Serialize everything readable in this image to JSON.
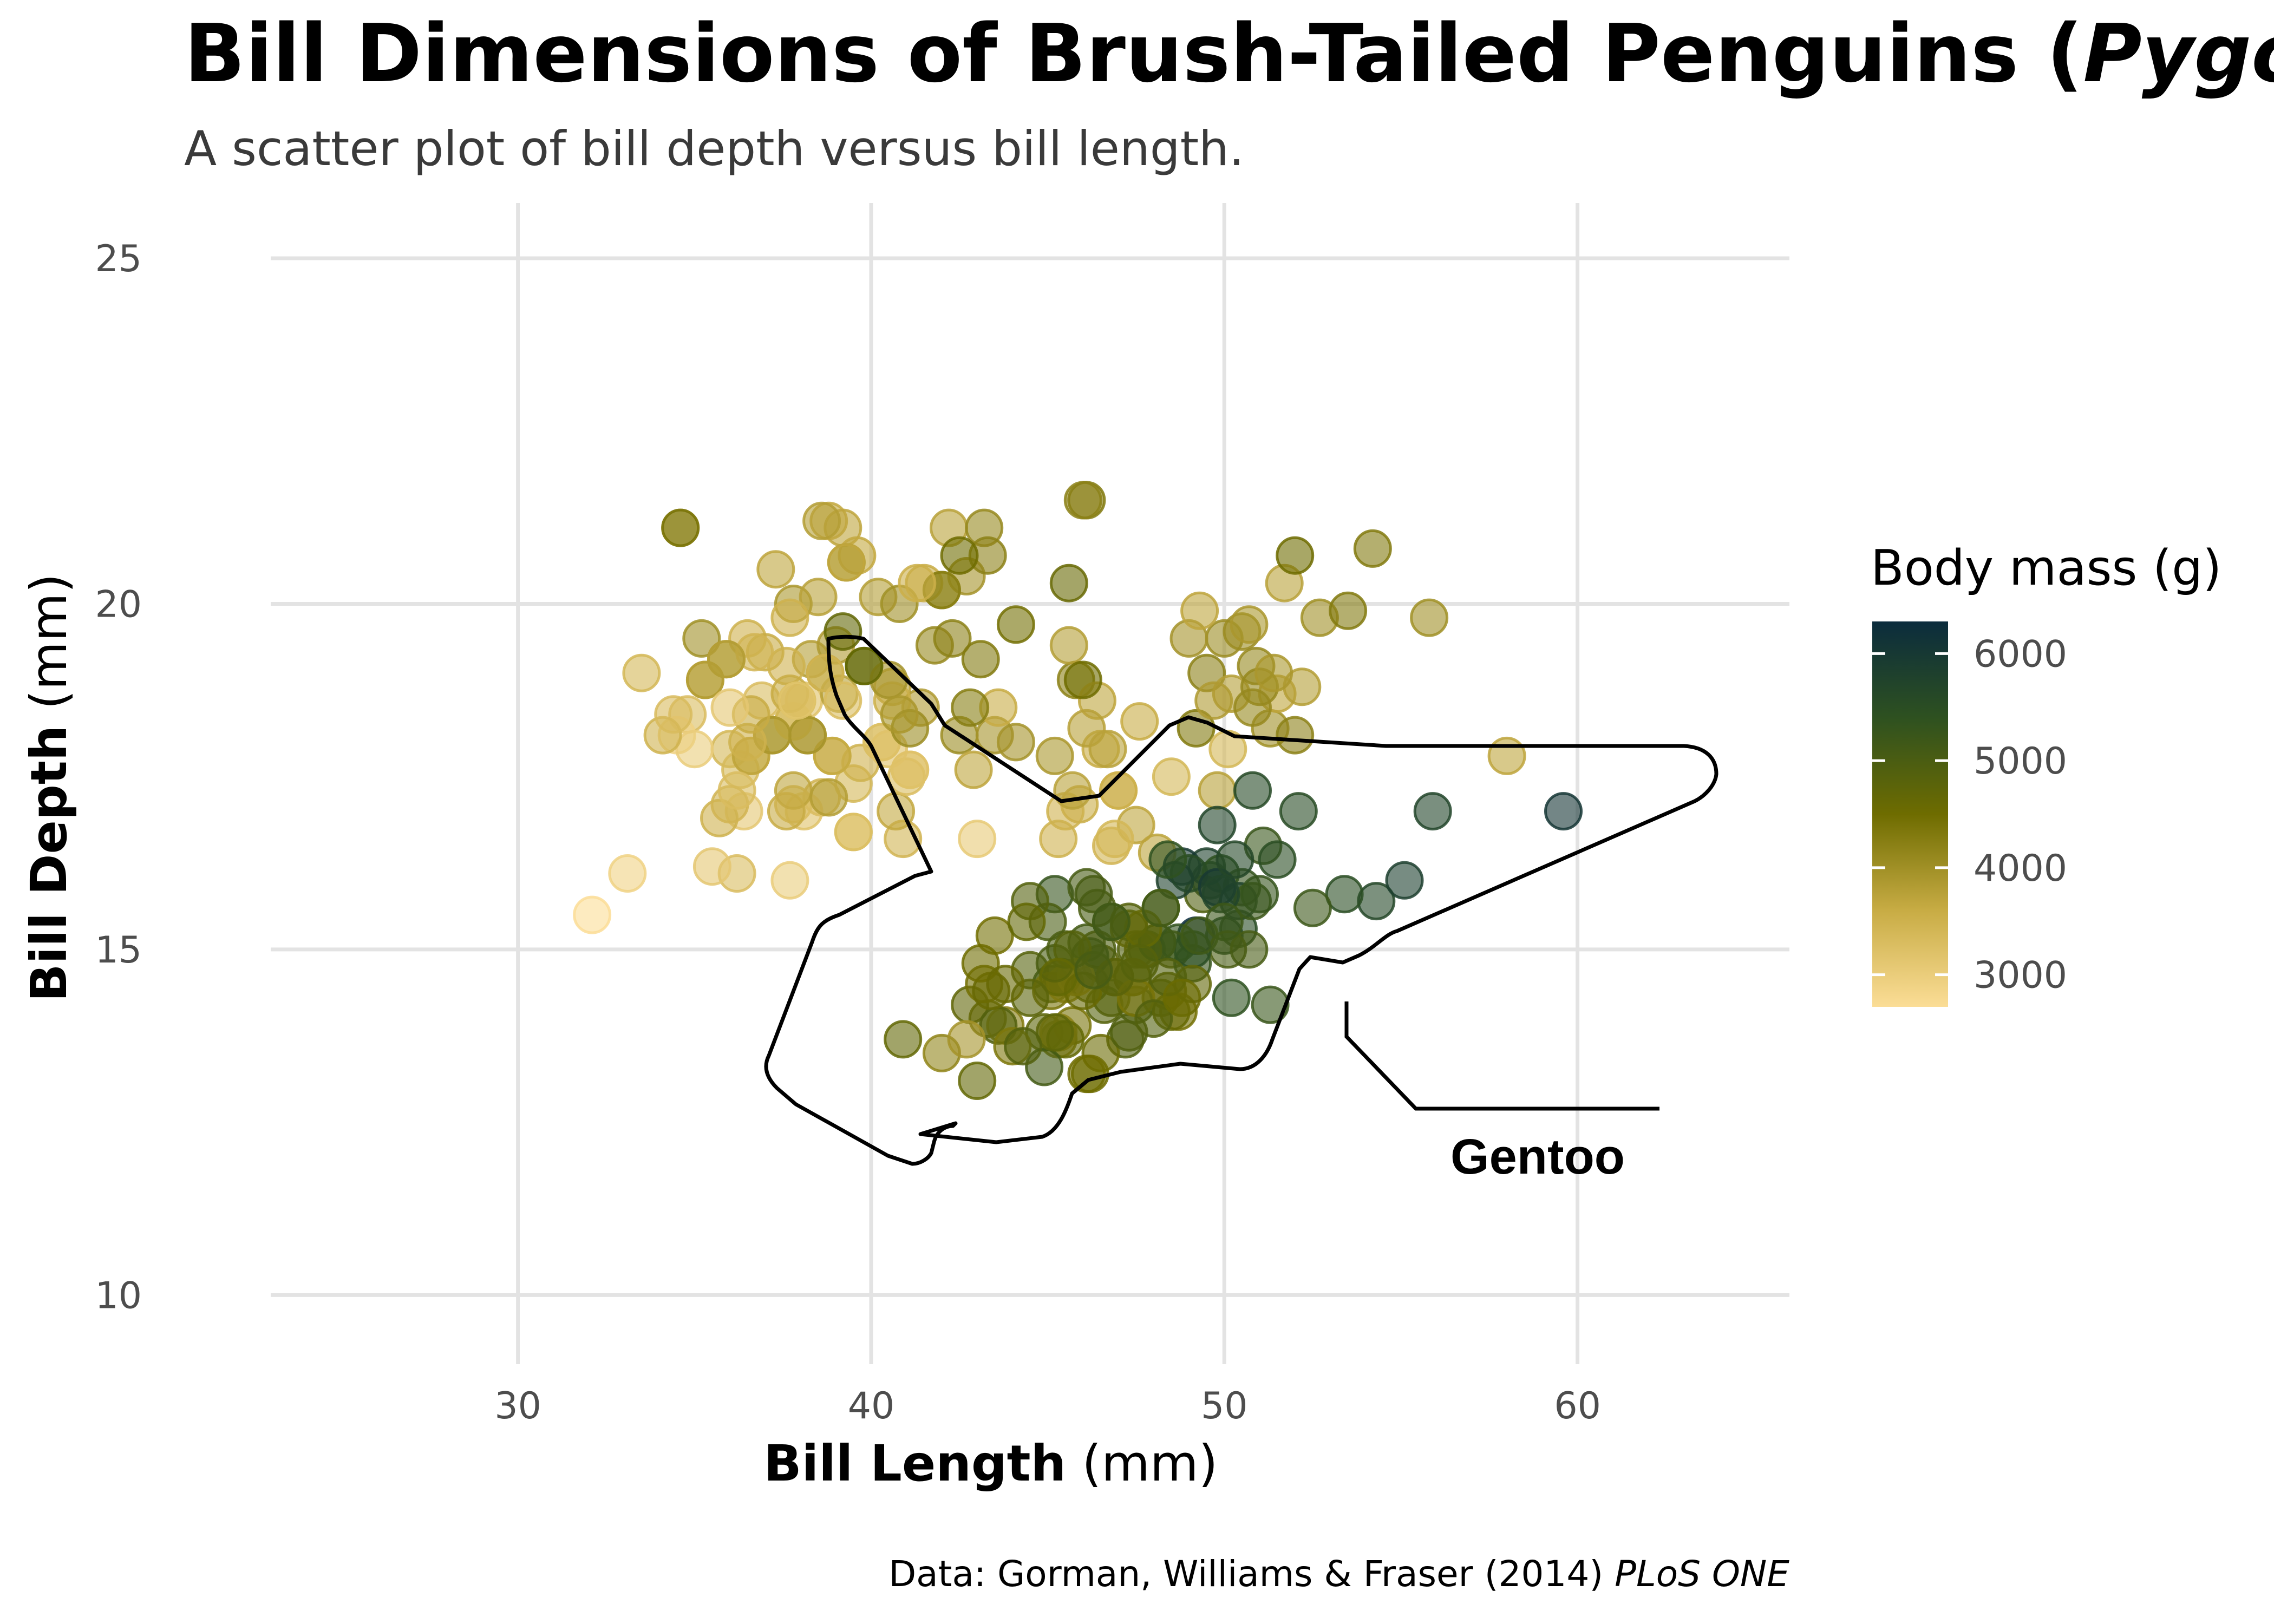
{
  "chart_data": {
    "type": "scatter",
    "title_main": "Bill Dimensions of Brush-Tailed Penguins (",
    "title_italic": "Pygoscelis",
    "subtitle": "A scatter plot of bill depth versus bill length.",
    "xlabel_bold": "Bill Length",
    "xlabel_unit": " (mm)",
    "ylabel_bold": "Bill Depth",
    "ylabel_unit": " (mm)",
    "xlim": [
      23,
      66
    ],
    "ylim": [
      9,
      25.8
    ],
    "x_ticks": [
      30,
      40,
      50,
      60
    ],
    "y_ticks": [
      10,
      15,
      20,
      25
    ],
    "grid": true,
    "legend": {
      "title": "Body mass (g)",
      "placement": "right",
      "min": 2700,
      "max": 6300,
      "ticks": [
        3000,
        4000,
        5000,
        6000
      ],
      "colors": [
        "#fbdd96",
        "#c8ac44",
        "#6e6c00",
        "#2e5120",
        "#0b2c3d"
      ]
    },
    "annotation": {
      "label": "Gentoo"
    },
    "caption_main": "Data: Gorman, Williams & Fraser (2014) ",
    "caption_italic": "PLoS ONE",
    "points": [
      [
        34.6,
        21.1,
        3800
      ],
      [
        38.8,
        21.2,
        3650
      ],
      [
        39.2,
        21.1,
        3700
      ],
      [
        42.2,
        21.1,
        3750
      ],
      [
        43.2,
        21.1,
        4100
      ],
      [
        46.1,
        21.5,
        4300
      ],
      [
        35.2,
        19.5,
        4000
      ],
      [
        36.5,
        19.5,
        3500
      ],
      [
        37.0,
        19.3,
        3600
      ],
      [
        37.8,
        20.0,
        3900
      ],
      [
        38.3,
        19.2,
        3800
      ],
      [
        39.0,
        19.4,
        3850
      ],
      [
        38.5,
        20.1,
        3750
      ],
      [
        39.6,
        20.7,
        3650
      ],
      [
        40.2,
        20.1,
        3800
      ],
      [
        40.8,
        20.0,
        4000
      ],
      [
        41.5,
        20.3,
        3600
      ],
      [
        42.7,
        20.4,
        3950
      ],
      [
        43.3,
        20.7,
        4200
      ],
      [
        37.3,
        20.5,
        3700
      ],
      [
        33.5,
        19.0,
        3400
      ],
      [
        34.8,
        18.4,
        3300
      ],
      [
        35.3,
        18.9,
        3700
      ],
      [
        36.0,
        17.9,
        3400
      ],
      [
        36.4,
        17.0,
        3100
      ],
      [
        36.6,
        17.8,
        3400
      ],
      [
        36.9,
        18.6,
        3300
      ],
      [
        37.6,
        19.1,
        3500
      ],
      [
        38.1,
        18.6,
        3200
      ],
      [
        38.6,
        17.2,
        3450
      ],
      [
        38.9,
        17.8,
        3600
      ],
      [
        39.5,
        17.4,
        3400
      ],
      [
        39.8,
        19.1,
        4600
      ],
      [
        40.3,
        18.0,
        3250
      ],
      [
        40.6,
        18.8,
        3700
      ],
      [
        41.1,
        17.6,
        3200
      ],
      [
        41.4,
        18.5,
        3850
      ],
      [
        41.8,
        19.4,
        4100
      ],
      [
        42.0,
        20.2,
        4000
      ],
      [
        42.3,
        19.5,
        4200
      ],
      [
        42.5,
        18.1,
        4050
      ],
      [
        43.1,
        19.2,
        4300
      ],
      [
        44.1,
        19.7,
        4450
      ],
      [
        45.8,
        18.9,
        4200
      ],
      [
        45.2,
        17.8,
        3900
      ],
      [
        47.0,
        17.3,
        3650
      ],
      [
        47.5,
        16.8,
        3700
      ],
      [
        48.1,
        16.4,
        3725
      ],
      [
        46.5,
        17.9,
        3600
      ],
      [
        45.6,
        19.4,
        3800
      ],
      [
        46.4,
        18.6,
        3700
      ],
      [
        46.8,
        16.5,
        3450
      ],
      [
        47.6,
        18.3,
        3600
      ],
      [
        49.2,
        18.2,
        4300
      ],
      [
        49.5,
        19.0,
        4200
      ],
      [
        50.0,
        19.5,
        4050
      ],
      [
        50.2,
        18.7,
        3800
      ],
      [
        50.5,
        19.6,
        4050
      ],
      [
        51.3,
        18.2,
        4000
      ],
      [
        51.5,
        18.7,
        3700
      ],
      [
        52.0,
        18.1,
        4200
      ],
      [
        52.2,
        18.8,
        3800
      ],
      [
        52.7,
        19.8,
        4000
      ],
      [
        53.5,
        19.9,
        4300
      ],
      [
        55.8,
        19.8,
        4000
      ],
      [
        58.0,
        17.8,
        3700
      ],
      [
        51.0,
        18.8,
        4100
      ],
      [
        50.7,
        19.7,
        3900
      ],
      [
        49.0,
        19.5,
        3950
      ],
      [
        49.8,
        17.3,
        3775
      ],
      [
        50.9,
        19.1,
        4100
      ],
      [
        51.7,
        20.3,
        3750
      ],
      [
        52.0,
        20.7,
        4500
      ],
      [
        54.2,
        20.8,
        4300
      ],
      [
        50.8,
        18.5,
        4100
      ],
      [
        49.3,
        19.9,
        3700
      ],
      [
        48.5,
        17.5,
        3400
      ],
      [
        46.0,
        18.9,
        4500
      ],
      [
        45.9,
        17.1,
        3575
      ],
      [
        45.5,
        17.0,
        3500
      ],
      [
        45.3,
        16.6,
        3500
      ],
      [
        46.1,
        18.2,
        3775
      ],
      [
        46.9,
        16.6,
        3400
      ],
      [
        47.0,
        17.3,
        3500
      ],
      [
        49.7,
        18.6,
        3850
      ],
      [
        50.1,
        17.9,
        3400
      ],
      [
        51.4,
        19.0,
        3900
      ],
      [
        45.7,
        17.3,
        3750
      ],
      [
        46.7,
        17.9,
        3750
      ],
      [
        43.5,
        18.1,
        3950
      ],
      [
        40.9,
        16.6,
        3450
      ],
      [
        39.7,
        17.7,
        3500
      ],
      [
        38.2,
        18.1,
        3700
      ],
      [
        35.9,
        19.2,
        3800
      ],
      [
        34.5,
        18.1,
        2900
      ],
      [
        35.7,
        16.9,
        3500
      ],
      [
        36.2,
        16.1,
        3300
      ],
      [
        37.7,
        16.0,
        3000
      ],
      [
        33.1,
        16.1,
        2900
      ],
      [
        32.1,
        15.5,
        2700
      ],
      [
        35.0,
        17.9,
        3000
      ],
      [
        35.5,
        16.2,
        3100
      ],
      [
        36.3,
        17.6,
        3350
      ],
      [
        37.9,
        18.6,
        3600
      ],
      [
        38.7,
        19.0,
        3800
      ],
      [
        39.3,
        20.6,
        4100
      ],
      [
        40.7,
        17.0,
        3650
      ],
      [
        41.0,
        17.5,
        3300
      ],
      [
        42.9,
        17.6,
        3700
      ],
      [
        43.0,
        16.6,
        3050
      ],
      [
        43.6,
        18.5,
        3600
      ],
      [
        44.1,
        18.0,
        3950
      ],
      [
        37.2,
        18.1,
        3900
      ],
      [
        37.8,
        18.3,
        3400
      ],
      [
        38.1,
        17.0,
        3200
      ],
      [
        39.1,
        18.7,
        3750
      ],
      [
        39.5,
        16.7,
        3250
      ],
      [
        40.3,
        18.0,
        3250
      ],
      [
        36.7,
        19.3,
        3450
      ],
      [
        39.3,
        20.6,
        3650
      ],
      [
        38.9,
        17.8,
        3625
      ],
      [
        39.2,
        19.6,
        4675
      ],
      [
        34.1,
        18.1,
        3475
      ],
      [
        42.0,
        20.2,
        4250
      ],
      [
        37.8,
        17.1,
        3300
      ],
      [
        37.8,
        17.3,
        3700
      ],
      [
        41.1,
        17.6,
        3200
      ],
      [
        38.6,
        21.2,
        3800
      ],
      [
        34.6,
        21.1,
        4400
      ],
      [
        36.6,
        17.8,
        3700
      ],
      [
        38.7,
        19.0,
        3450
      ],
      [
        42.5,
        20.7,
        4500
      ],
      [
        34.4,
        18.4,
        3325
      ],
      [
        46.0,
        21.5,
        4200
      ],
      [
        37.8,
        18.3,
        3400
      ],
      [
        37.7,
        18.7,
        3600
      ],
      [
        35.9,
        19.2,
        3800
      ],
      [
        38.2,
        18.1,
        3950
      ],
      [
        38.8,
        17.2,
        3800
      ],
      [
        35.3,
        18.9,
        3800
      ],
      [
        40.6,
        18.6,
        3550
      ],
      [
        40.5,
        17.9,
        3200
      ],
      [
        37.9,
        18.6,
        3150
      ],
      [
        40.5,
        18.9,
        3950
      ],
      [
        39.5,
        16.7,
        3250
      ],
      [
        37.2,
        18.1,
        3900
      ],
      [
        39.2,
        18.6,
        3300
      ],
      [
        39.8,
        19.1,
        4650
      ],
      [
        36.0,
        17.1,
        3450
      ],
      [
        41.1,
        18.2,
        4050
      ],
      [
        40.8,
        18.4,
        3900
      ],
      [
        36.5,
        18.0,
        3500
      ],
      [
        36.6,
        18.4,
        3600
      ],
      [
        42.8,
        18.5,
        4250
      ],
      [
        36.0,
        18.5,
        3100
      ],
      [
        37.7,
        19.8,
        3500
      ],
      [
        41.3,
        20.3,
        3550
      ],
      [
        36.2,
        17.3,
        3300
      ],
      [
        37.6,
        17.0,
        3600
      ],
      [
        45.6,
        20.3,
        4600
      ],
      [
        46.5,
        14.8,
        4800
      ],
      [
        47.5,
        15.0,
        4900
      ],
      [
        48.2,
        14.3,
        4650
      ],
      [
        46.9,
        14.6,
        4500
      ],
      [
        45.4,
        14.6,
        4800
      ],
      [
        43.3,
        14.0,
        4575
      ],
      [
        49.2,
        15.2,
        6300
      ],
      [
        48.4,
        14.4,
        4625
      ],
      [
        50.0,
        15.2,
        5700
      ],
      [
        44.5,
        14.7,
        4850
      ],
      [
        42.8,
        14.2,
        4700
      ],
      [
        45.1,
        14.5,
        5050
      ],
      [
        46.8,
        15.4,
        5150
      ],
      [
        45.2,
        15.8,
        5300
      ],
      [
        48.5,
        15.0,
        4850
      ],
      [
        49.1,
        14.8,
        5300
      ],
      [
        43.8,
        13.9,
        4300
      ],
      [
        50.4,
        15.3,
        5550
      ],
      [
        45.3,
        13.7,
        4300
      ],
      [
        46.1,
        15.1,
        5100
      ],
      [
        42.0,
        13.5,
        4150
      ],
      [
        49.6,
        16.0,
        5700
      ],
      [
        46.4,
        15.6,
        5000
      ],
      [
        52.1,
        17.0,
        5550
      ],
      [
        48.7,
        14.1,
        4450
      ],
      [
        45.5,
        14.5,
        4200
      ],
      [
        50.8,
        17.3,
        5600
      ],
      [
        43.2,
        14.5,
        4450
      ],
      [
        49.4,
        15.8,
        4925
      ],
      [
        47.3,
        15.3,
        4675
      ],
      [
        50.1,
        15.0,
        5000
      ],
      [
        44.9,
        13.8,
        4750
      ],
      [
        50.7,
        15.0,
        5050
      ],
      [
        45.0,
        15.4,
        5000
      ],
      [
        43.6,
        13.9,
        4900
      ],
      [
        49.5,
        16.2,
        5800
      ],
      [
        55.9,
        17.0,
        5700
      ],
      [
        59.6,
        17.0,
        6050
      ],
      [
        54.3,
        15.7,
        5650
      ],
      [
        49.9,
        16.1,
        5400
      ],
      [
        46.2,
        14.9,
        5300
      ],
      [
        47.8,
        15.0,
        5200
      ],
      [
        50.2,
        14.3,
        5400
      ],
      [
        45.7,
        13.9,
        4400
      ],
      [
        48.8,
        16.2,
        6000
      ],
      [
        51.3,
        14.2,
        5250
      ],
      [
        47.5,
        14.2,
        4950
      ],
      [
        50.5,
        15.9,
        5300
      ],
      [
        53.4,
        15.8,
        5500
      ],
      [
        55.1,
        16.0,
        5850
      ],
      [
        46.3,
        15.8,
        5050
      ],
      [
        44.5,
        15.7,
        4875
      ],
      [
        48.1,
        15.1,
        5100
      ],
      [
        49.0,
        16.1,
        5550
      ],
      [
        45.1,
        14.4,
        4400
      ],
      [
        46.2,
        14.5,
        4800
      ],
      [
        48.6,
        16.0,
        5800
      ],
      [
        45.3,
        13.8,
        4200
      ],
      [
        47.2,
        13.7,
        4925
      ],
      [
        46.6,
        14.2,
        4850
      ],
      [
        49.1,
        15.0,
        5500
      ],
      [
        45.5,
        13.7,
        4650
      ],
      [
        50.4,
        15.7,
        5750
      ],
      [
        46.8,
        14.3,
        4850
      ],
      [
        43.4,
        14.4,
        4600
      ],
      [
        52.5,
        15.6,
        5200
      ],
      [
        48.2,
        15.6,
        5100
      ],
      [
        44.9,
        13.3,
        5100
      ],
      [
        51.1,
        16.5,
        5250
      ],
      [
        46.5,
        13.5,
        4550
      ],
      [
        40.9,
        13.7,
        4650
      ],
      [
        50.8,
        15.7,
        5200
      ],
      [
        45.8,
        14.6,
        4200
      ],
      [
        42.7,
        13.7,
        3950
      ],
      [
        46.0,
        14.4,
        4600
      ],
      [
        47.4,
        14.6,
        4725
      ],
      [
        43.5,
        15.2,
        4450
      ],
      [
        49.8,
        16.8,
        5700
      ],
      [
        45.2,
        13.8,
        4750
      ],
      [
        48.7,
        15.1,
        5350
      ],
      [
        51.5,
        16.3,
        5500
      ],
      [
        46.2,
        13.2,
        4500
      ],
      [
        44.0,
        13.6,
        4350
      ],
      [
        48.4,
        16.3,
        5400
      ],
      [
        45.5,
        15.0,
        5000
      ],
      [
        49.8,
        15.9,
        5950
      ],
      [
        47.7,
        15.0,
        4725
      ],
      [
        46.1,
        15.9,
        5050
      ],
      [
        48.1,
        15.1,
        5150
      ],
      [
        44.4,
        15.4,
        4650
      ],
      [
        47.4,
        14.6,
        4725
      ],
      [
        46.4,
        15.0,
        4975
      ],
      [
        50.3,
        16.3,
        5650
      ],
      [
        43.1,
        14.8,
        4500
      ],
      [
        47.3,
        13.8,
        4925
      ],
      [
        44.3,
        13.6,
        4900
      ],
      [
        45.2,
        14.8,
        5000
      ],
      [
        49.9,
        15.8,
        5700
      ],
      [
        47.5,
        14.3,
        4400
      ],
      [
        48.5,
        14.1,
        4625
      ],
      [
        51.0,
        15.8,
        5300
      ],
      [
        48.0,
        14.0,
        4900
      ],
      [
        47.3,
        15.4,
        4850
      ],
      [
        43.0,
        13.1,
        4650
      ],
      [
        46.9,
        14.6,
        4800
      ],
      [
        45.7,
        15.0,
        4850
      ],
      [
        49.1,
        14.5,
        4700
      ],
      [
        50.0,
        15.4,
        5200
      ],
      [
        45.3,
        14.6,
        4650
      ],
      [
        47.7,
        15.3,
        4650
      ],
      [
        46.1,
        13.2,
        4500
      ],
      [
        48.4,
        14.6,
        4900
      ],
      [
        49.3,
        15.2,
        5150
      ],
      [
        44.5,
        14.3,
        4775
      ],
      [
        46.3,
        14.7,
        5050
      ],
      [
        48.8,
        14.3,
        4550
      ],
      [
        47.6,
        14.8,
        4850
      ],
      [
        46.8,
        15.4,
        5150
      ],
      [
        43.8,
        14.5,
        4600
      ],
      [
        48.2,
        15.6,
        5100
      ]
    ]
  }
}
